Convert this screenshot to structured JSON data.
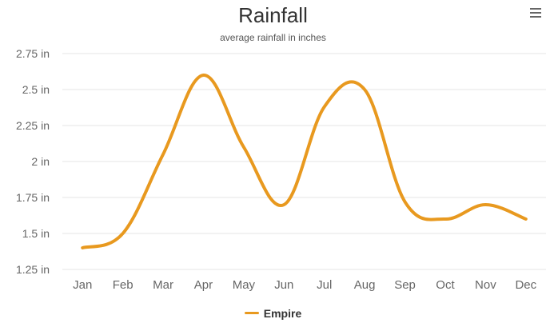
{
  "chart_data": {
    "type": "line",
    "title": "Rainfall",
    "subtitle": "average rainfall in inches",
    "categories": [
      "Jan",
      "Feb",
      "Mar",
      "Apr",
      "May",
      "Jun",
      "Jul",
      "Aug",
      "Sep",
      "Oct",
      "Nov",
      "Dec"
    ],
    "series": [
      {
        "name": "Empire",
        "color": "#E8991F",
        "values": [
          1.4,
          1.5,
          2.05,
          2.6,
          2.1,
          1.7,
          2.38,
          2.5,
          1.72,
          1.6,
          1.7,
          1.6
        ]
      }
    ],
    "ylim": [
      1.25,
      2.75
    ],
    "yticks": [
      1.25,
      1.5,
      1.75,
      2,
      2.25,
      2.5,
      2.75
    ],
    "ytick_labels": [
      "1.25 in",
      "1.5 in",
      "1.75 in",
      "2 in",
      "2.25 in",
      "2.5 in",
      "2.75 in"
    ],
    "grid": true,
    "legend_position": "bottom-center",
    "menu_icon": "hamburger-menu-icon"
  }
}
